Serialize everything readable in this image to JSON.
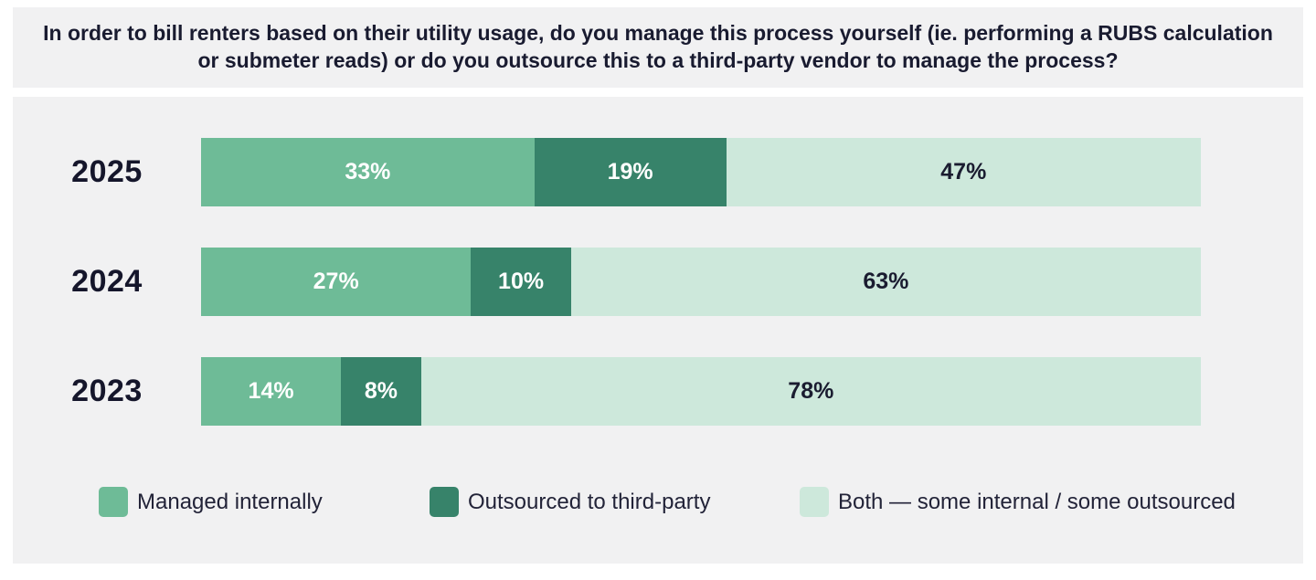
{
  "title": "In order to bill renters based on their utility usage, do you manage this process yourself (ie. performing a RUBS calculation or submeter reads) or do you outsource this to a third-party vendor to manage the process?",
  "colors": {
    "managed_internally": "#6EBB97",
    "outsourced_third_party": "#37836A",
    "both_mixed": "#CDE8DB",
    "card_background": "#F1F1F2",
    "text_navy": "#191B30",
    "bar_label_light": "#FFFFFF"
  },
  "chart_data": {
    "type": "bar",
    "orientation": "horizontal",
    "stacked": true,
    "title": "In order to bill renters based on their utility usage, do you manage this process yourself (ie. performing a RUBS calculation or submeter reads) or do you outsource this to a third-party vendor to manage the process?",
    "categories": [
      "2025",
      "2024",
      "2023"
    ],
    "series": [
      {
        "name": "Managed internally",
        "color": "#6EBB97",
        "values": [
          33,
          27,
          14
        ]
      },
      {
        "name": "Outsourced to third-party",
        "color": "#37836A",
        "values": [
          19,
          10,
          8
        ]
      },
      {
        "name": "Both — some internal / some outsourced",
        "color": "#CDE8DB",
        "values": [
          47,
          63,
          78
        ]
      }
    ],
    "value_format": "percent",
    "xlim": [
      0,
      100
    ],
    "legend_position": "bottom",
    "grid": false
  },
  "rows": [
    {
      "year": "2025",
      "labels": [
        "33%",
        "19%",
        "47%"
      ]
    },
    {
      "year": "2024",
      "labels": [
        "27%",
        "10%",
        "63%"
      ]
    },
    {
      "year": "2023",
      "labels": [
        "14%",
        "8%",
        "78%"
      ]
    }
  ],
  "legend": {
    "items": [
      {
        "label": "Managed internally"
      },
      {
        "label": "Outsourced to third-party"
      },
      {
        "label": "Both — some internal / some outsourced"
      }
    ]
  }
}
